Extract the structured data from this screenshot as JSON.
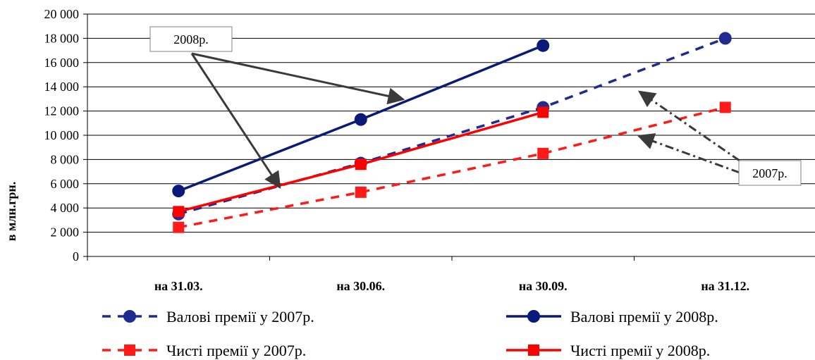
{
  "chart_data": {
    "type": "line",
    "categories": [
      "на 31.03.",
      "на 30.06.",
      "на 30.09.",
      "на 31.12."
    ],
    "ylabel": "в млн.грн.",
    "ylim": [
      0,
      20000
    ],
    "yticks": [
      0,
      2000,
      4000,
      6000,
      8000,
      10000,
      12000,
      14000,
      16000,
      18000,
      20000
    ],
    "ytick_labels": [
      "0",
      "2 000",
      "4 000",
      "6 000",
      "8 000",
      "10 000",
      "12 000",
      "14 000",
      "16 000",
      "18 000",
      "20 000"
    ],
    "grid": true,
    "legend_position": "bottom",
    "series": [
      {
        "name": "Валові премії у 2007р.",
        "values": [
          3500,
          7700,
          12300,
          18000
        ],
        "color": "#1f2b8f",
        "line_style": "dashed",
        "marker": "circle"
      },
      {
        "name": "Валові премії у 2008р.",
        "values": [
          5400,
          11300,
          17400,
          null
        ],
        "color": "#0a1a7a",
        "line_style": "solid",
        "marker": "circle"
      },
      {
        "name": "Чисті премії у 2007р.",
        "values": [
          2400,
          5300,
          8500,
          12300
        ],
        "color": "#ff1a1a",
        "line_style": "dashed",
        "marker": "square"
      },
      {
        "name": "Чисті премії у 2008р.",
        "values": [
          3700,
          7600,
          11900,
          null
        ],
        "color": "#ff0000",
        "line_style": "solid",
        "marker": "square"
      }
    ],
    "annotations": [
      {
        "text": "2008р.",
        "color": "#3a3a3a",
        "line_style": "solid"
      },
      {
        "text": "2007р.",
        "color": "#3a3a3a",
        "line_style": "dashdot"
      }
    ]
  }
}
